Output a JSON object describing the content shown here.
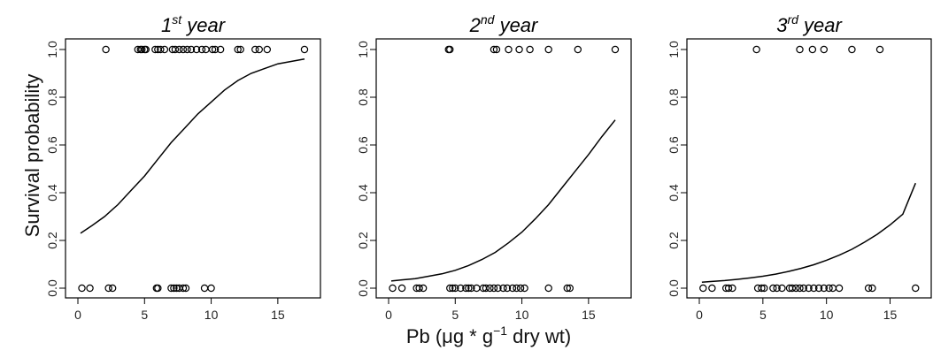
{
  "chart_data": {
    "type": "scatter",
    "ylabel": "Survival probability",
    "xlabel_parts": {
      "base": "Pb (μg * g",
      "sup": "−1",
      "tail": " dry wt)"
    },
    "xlim": [
      0,
      17
    ],
    "ylim": [
      0,
      1
    ],
    "xticks": [
      0,
      5,
      10,
      15
    ],
    "yticks": [
      0.0,
      0.2,
      0.4,
      0.6,
      0.8,
      1.0
    ],
    "ytick_labels": [
      "0.0",
      "0.2",
      "0.4",
      "0.6",
      "0.8",
      "1.0"
    ],
    "grid": false,
    "panels": [
      {
        "title_num": "1",
        "title_sup": "st",
        "title_word": " year",
        "fit_curve": [
          [
            0.2,
            0.23
          ],
          [
            1,
            0.26
          ],
          [
            2,
            0.3
          ],
          [
            3,
            0.35
          ],
          [
            4,
            0.41
          ],
          [
            5,
            0.47
          ],
          [
            6,
            0.54
          ],
          [
            7,
            0.61
          ],
          [
            8,
            0.67
          ],
          [
            9,
            0.73
          ],
          [
            10,
            0.78
          ],
          [
            11,
            0.83
          ],
          [
            12,
            0.87
          ],
          [
            13,
            0.9
          ],
          [
            14,
            0.92
          ],
          [
            15,
            0.94
          ],
          [
            16,
            0.95
          ],
          [
            17,
            0.96
          ]
        ],
        "points_survived": [
          2.1,
          4.5,
          4.7,
          4.8,
          5.0,
          5.1,
          5.8,
          6.0,
          6.2,
          6.5,
          7.1,
          7.3,
          7.6,
          7.9,
          8.2,
          8.5,
          8.9,
          9.3,
          9.6,
          10.1,
          10.3,
          10.7,
          12.0,
          12.2,
          13.3,
          13.6,
          14.2,
          17.0
        ],
        "points_died": [
          0.3,
          0.9,
          2.3,
          2.6,
          5.9,
          6.0,
          7.0,
          7.2,
          7.4,
          7.6,
          7.9,
          8.1,
          9.5,
          10.0
        ]
      },
      {
        "title_num": "2",
        "title_sup": "nd",
        "title_word": " year",
        "fit_curve": [
          [
            0.2,
            0.03
          ],
          [
            1,
            0.035
          ],
          [
            2,
            0.04
          ],
          [
            3,
            0.05
          ],
          [
            4,
            0.06
          ],
          [
            5,
            0.075
          ],
          [
            6,
            0.095
          ],
          [
            7,
            0.12
          ],
          [
            8,
            0.15
          ],
          [
            9,
            0.19
          ],
          [
            10,
            0.235
          ],
          [
            11,
            0.29
          ],
          [
            12,
            0.35
          ],
          [
            13,
            0.42
          ],
          [
            14,
            0.49
          ],
          [
            15,
            0.56
          ],
          [
            16,
            0.635
          ],
          [
            17,
            0.705
          ]
        ],
        "points_survived": [
          4.5,
          4.6,
          7.9,
          8.1,
          9.0,
          9.8,
          10.6,
          12.0,
          14.2,
          17.0
        ],
        "points_died": [
          0.3,
          1.0,
          2.1,
          2.3,
          2.6,
          4.6,
          4.8,
          5.0,
          5.4,
          5.8,
          6.0,
          6.2,
          6.6,
          7.1,
          7.3,
          7.6,
          7.9,
          8.2,
          8.6,
          8.9,
          9.3,
          9.6,
          9.9,
          10.2,
          12.0,
          13.4,
          13.6
        ]
      },
      {
        "title_num": "3",
        "title_sup": "rd",
        "title_word": " year",
        "fit_curve": [
          [
            0.2,
            0.025
          ],
          [
            1,
            0.028
          ],
          [
            2,
            0.032
          ],
          [
            3,
            0.037
          ],
          [
            4,
            0.043
          ],
          [
            5,
            0.05
          ],
          [
            6,
            0.059
          ],
          [
            7,
            0.07
          ],
          [
            8,
            0.083
          ],
          [
            9,
            0.098
          ],
          [
            10,
            0.117
          ],
          [
            11,
            0.138
          ],
          [
            12,
            0.163
          ],
          [
            13,
            0.193
          ],
          [
            14,
            0.226
          ],
          [
            15,
            0.265
          ],
          [
            16,
            0.31
          ],
          [
            17,
            0.44
          ]
        ],
        "points_survived": [
          4.5,
          7.9,
          8.9,
          9.8,
          12.0,
          14.2
        ],
        "points_died": [
          0.3,
          1.0,
          2.1,
          2.3,
          2.6,
          4.6,
          4.9,
          5.1,
          5.8,
          6.1,
          6.5,
          7.1,
          7.3,
          7.6,
          7.9,
          8.2,
          8.6,
          9.0,
          9.4,
          9.8,
          10.2,
          10.5,
          11.0,
          13.3,
          13.6,
          17.0
        ]
      }
    ]
  }
}
